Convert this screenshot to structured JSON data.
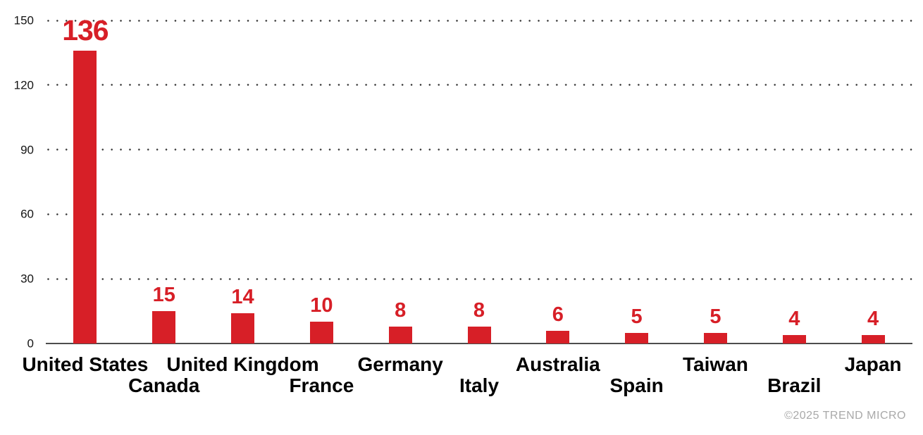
{
  "chart_data": {
    "type": "bar",
    "categories": [
      "United States",
      "Canada",
      "United Kingdom",
      "France",
      "Germany",
      "Italy",
      "Australia",
      "Spain",
      "Taiwan",
      "Brazil",
      "Japan"
    ],
    "values": [
      136,
      15,
      14,
      10,
      8,
      8,
      6,
      5,
      5,
      4,
      4
    ],
    "title": "",
    "xlabel": "",
    "ylabel": "",
    "ylim": [
      0,
      150
    ],
    "yticks": [
      0,
      30,
      60,
      90,
      120,
      150
    ],
    "grid": "horizontal-dotted",
    "legend_position": "none",
    "value_labels_shown": true
  },
  "footer": {
    "credit": "©2025 TREND MICRO"
  },
  "colors": {
    "bar": "#d71f27",
    "value_label": "#d71f27",
    "axis": "#4d4d4d",
    "grid_dot": "#2e2e2e",
    "tick_label": "#141414",
    "category_label": "#000000",
    "credit": "#a9a9a9",
    "background": "#ffffff"
  }
}
